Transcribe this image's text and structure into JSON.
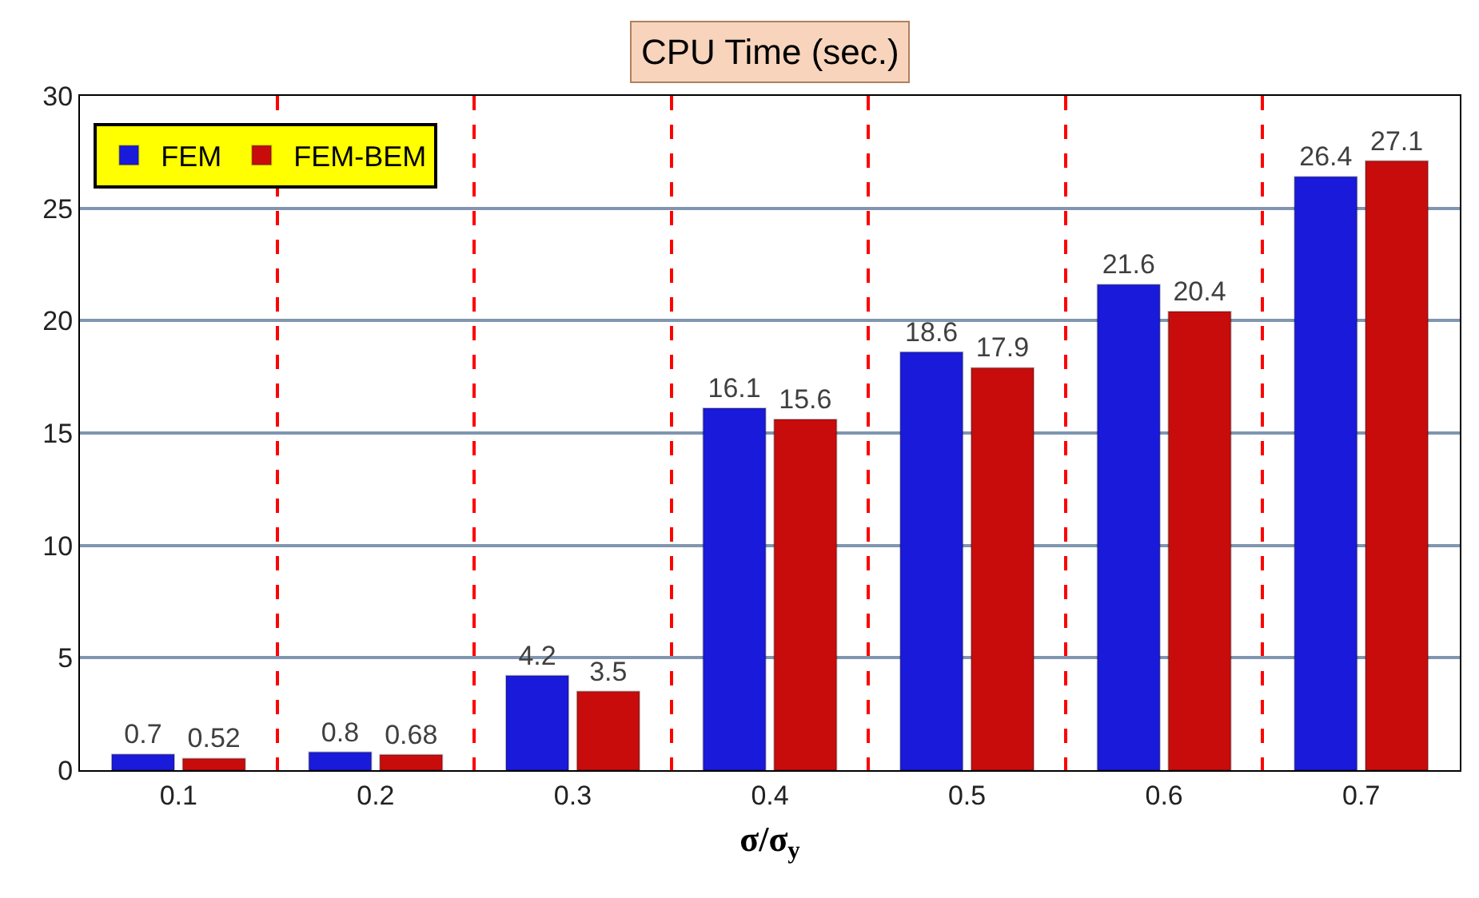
{
  "chart_data": {
    "type": "bar",
    "title": "CPU Time (sec.)",
    "xlabel": "σ/σ$_{y}$",
    "categories": [
      "0.1",
      "0.2",
      "0.3",
      "0.4",
      "0.5",
      "0.6",
      "0.7"
    ],
    "series": [
      {
        "name": "FEM",
        "color": "#1a1adb",
        "values": [
          0.7,
          0.8,
          4.2,
          16.1,
          18.6,
          21.6,
          26.4
        ]
      },
      {
        "name": "FEM-BEM",
        "color": "#c80c0c",
        "values": [
          0.52,
          0.68,
          3.5,
          15.6,
          17.9,
          20.4,
          27.1
        ]
      }
    ],
    "ylim": [
      0,
      30
    ],
    "yticks": [
      0,
      5,
      10,
      15,
      20,
      25,
      30
    ],
    "grid": true,
    "legend": "top left",
    "data_labels": true
  }
}
